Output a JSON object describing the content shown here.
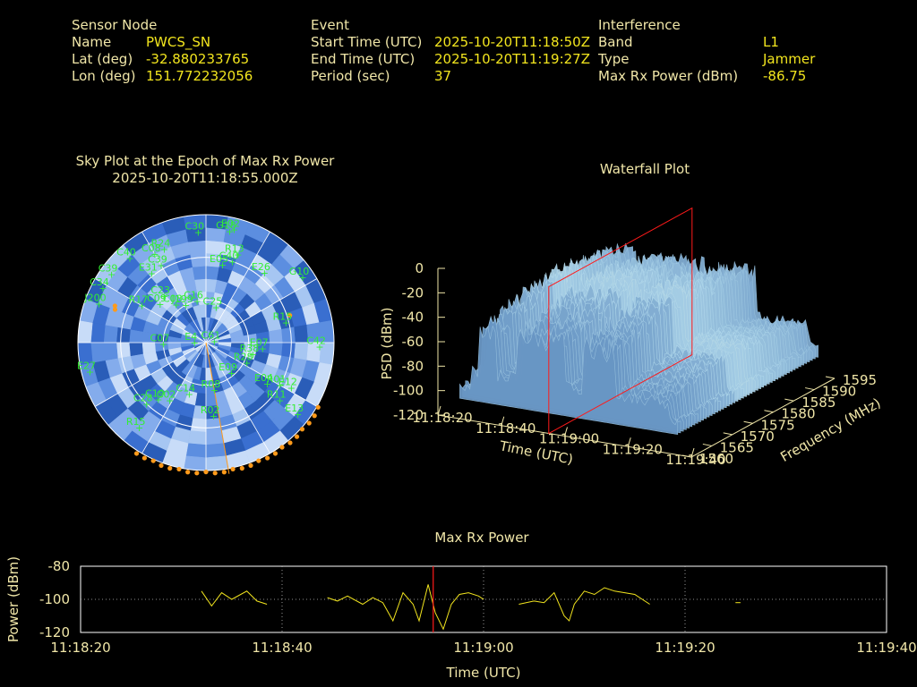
{
  "info": {
    "sensor": {
      "heading": "Sensor Node",
      "rows": [
        {
          "label": "Name",
          "value": "PWCS_SN"
        },
        {
          "label": "Lat (deg)",
          "value": "-32.880233765"
        },
        {
          "label": "Lon (deg)",
          "value": "151.772232056"
        }
      ]
    },
    "event": {
      "heading": "Event",
      "rows": [
        {
          "label": "Start Time (UTC)",
          "value": "2025-10-20T11:18:50Z"
        },
        {
          "label": "End Time (UTC)",
          "value": "2025-10-20T11:19:27Z"
        },
        {
          "label": "Period (sec)",
          "value": "37"
        }
      ]
    },
    "interference": {
      "heading": "Interference",
      "rows": [
        {
          "label": "Band",
          "value": "L1"
        },
        {
          "label": "Type",
          "value": "Jammer"
        },
        {
          "label": "Max Rx Power (dBm)",
          "value": "-86.75"
        }
      ]
    }
  },
  "colors": {
    "label": "#f0e6a8",
    "value": "#f2e51e",
    "satellite": "#33ee33",
    "orange": "#ff9a1a",
    "marker": "#ff1a1a",
    "sky_tiles": [
      "#2a5db8",
      "#3a6fd0",
      "#5c8ee0",
      "#84acec",
      "#a6c6f2",
      "#c8dcf8"
    ]
  },
  "chart_data": [
    {
      "type": "scatter",
      "title": "Sky Plot at the Epoch of Max Rx Power",
      "subtitle": "2025-10-20T11:18:55.000Z",
      "coordinates": "polar (azimuth deg clockwise from north, elevation deg)",
      "elevation_rings": [
        0,
        30,
        60,
        90
      ],
      "satellites": [
        {
          "id": "C30",
          "az": 356,
          "el": 12
        },
        {
          "id": "G18",
          "az": 12,
          "el": 10
        },
        {
          "id": "E02",
          "az": 14,
          "el": 8
        },
        {
          "id": "R13",
          "az": 20,
          "el": 24
        },
        {
          "id": "E05",
          "az": 12,
          "el": 34
        },
        {
          "id": "C40",
          "az": 18,
          "el": 30
        },
        {
          "id": "R24",
          "az": 336,
          "el": 18
        },
        {
          "id": "C08",
          "az": 330,
          "el": 18
        },
        {
          "id": "C39",
          "az": 330,
          "el": 27
        },
        {
          "id": "C40",
          "az": 318,
          "el": 10
        },
        {
          "id": "E31",
          "az": 322,
          "el": 28
        },
        {
          "id": "C39",
          "az": 306,
          "el": 8
        },
        {
          "id": "C34",
          "az": 298,
          "el": 8
        },
        {
          "id": "C23",
          "az": 318,
          "el": 46
        },
        {
          "id": "J199",
          "az": 332,
          "el": 60
        },
        {
          "id": "C09",
          "az": 310,
          "el": 48
        },
        {
          "id": "C08",
          "az": 322,
          "el": 56
        },
        {
          "id": "C16",
          "az": 348,
          "el": 60
        },
        {
          "id": "C25",
          "az": 16,
          "el": 64
        },
        {
          "id": "E26",
          "az": 40,
          "el": 26
        },
        {
          "id": "G10",
          "az": 56,
          "el": 8
        },
        {
          "id": "R17",
          "az": 300,
          "el": 38
        },
        {
          "id": "J200",
          "az": 290,
          "el": 10
        },
        {
          "id": "R15",
          "az": 76,
          "el": 32
        },
        {
          "id": "C61",
          "az": 80,
          "el": 84
        },
        {
          "id": "R38",
          "az": 104,
          "el": 56
        },
        {
          "id": "E07",
          "az": 96,
          "el": 50
        },
        {
          "id": "C42",
          "az": 92,
          "el": 10
        },
        {
          "id": "C07",
          "az": 268,
          "el": 60
        },
        {
          "id": "E4",
          "az": 270,
          "el": 82
        },
        {
          "id": "E27",
          "az": 256,
          "el": 6
        },
        {
          "id": "C28",
          "az": 224,
          "el": 30
        },
        {
          "id": "C19",
          "az": 220,
          "el": 38
        },
        {
          "id": "C02",
          "az": 212,
          "el": 42
        },
        {
          "id": "C14",
          "az": 198,
          "el": 52
        },
        {
          "id": "R08",
          "az": 170,
          "el": 56
        },
        {
          "id": "E09",
          "az": 140,
          "el": 62
        },
        {
          "id": "R28",
          "az": 116,
          "el": 58
        },
        {
          "id": "E04",
          "az": 124,
          "el": 38
        },
        {
          "id": "R01",
          "az": 120,
          "el": 30
        },
        {
          "id": "E12",
          "az": 118,
          "el": 22
        },
        {
          "id": "R11",
          "az": 128,
          "el": 24
        },
        {
          "id": "E13",
          "az": 128,
          "el": 8
        },
        {
          "id": "R02",
          "az": 174,
          "el": 38
        },
        {
          "id": "R15",
          "az": 218,
          "el": 14
        }
      ],
      "interference_direction_deg": 170,
      "orange_markers_note": "horizon arc between azimuth 120 and 210 plus two points near azimuth 70 and 290"
    },
    {
      "type": "surface",
      "title": "Waterfall Plot",
      "xlabel": "Time (UTC)",
      "ylabel": "Frequency (MHz)",
      "zlabel": "PSD (dBm)",
      "x_ticks": [
        "11:18:20",
        "11:18:40",
        "11:19:00",
        "11:19:20",
        "11:19:40"
      ],
      "y_ticks": [
        "1560",
        "1565",
        "1570",
        "1575",
        "1580",
        "1585",
        "1590",
        "1595"
      ],
      "z_ticks": [
        "0",
        "-20",
        "-40",
        "-60",
        "-80",
        "-100",
        "-120"
      ],
      "zlim": [
        -120,
        0
      ],
      "cursor_time": "11:18:55",
      "activity_segments": [
        {
          "start": "11:18:32",
          "end": "11:18:38"
        },
        {
          "start": "11:18:44",
          "end": "11:18:59"
        },
        {
          "start": "11:19:05",
          "end": "11:19:15"
        }
      ]
    },
    {
      "type": "line",
      "title": "Max Rx Power",
      "xlabel": "Time (UTC)",
      "ylabel": "Power (dBm)",
      "x_ticks": [
        "11:18:20",
        "11:18:40",
        "11:19:00",
        "11:19:20",
        "11:19:40"
      ],
      "y_ticks": [
        "-80",
        "-100",
        "-120"
      ],
      "ylim": [
        -120,
        -80
      ],
      "x_range_sec": [
        0,
        80
      ],
      "marker_time_sec": 35,
      "series": [
        {
          "segments": [
            [
              [
                12.0,
                -95
              ],
              [
                13.0,
                -104
              ],
              [
                14.0,
                -96
              ],
              [
                15.0,
                -100
              ],
              [
                16.5,
                -95
              ],
              [
                17.5,
                -101
              ],
              [
                18.5,
                -103
              ]
            ],
            [
              [
                24.5,
                -99
              ],
              [
                25.5,
                -101
              ],
              [
                26.5,
                -98
              ],
              [
                28.0,
                -103
              ],
              [
                29.0,
                -99
              ],
              [
                30.0,
                -102
              ],
              [
                31.0,
                -113
              ],
              [
                32.0,
                -96
              ],
              [
                33.0,
                -103
              ],
              [
                33.6,
                -113
              ],
              [
                34.5,
                -91
              ],
              [
                35.2,
                -108
              ],
              [
                36.0,
                -118
              ],
              [
                36.8,
                -103
              ],
              [
                37.6,
                -97
              ],
              [
                38.5,
                -96
              ],
              [
                39.5,
                -98
              ],
              [
                40.0,
                -100
              ]
            ],
            [
              [
                43.5,
                -103
              ],
              [
                45.0,
                -101
              ],
              [
                46.0,
                -102
              ],
              [
                47.0,
                -96
              ],
              [
                48.0,
                -110
              ],
              [
                48.5,
                -113
              ],
              [
                49.0,
                -103
              ],
              [
                50.0,
                -95
              ],
              [
                51.0,
                -97
              ],
              [
                52.0,
                -93
              ],
              [
                53.0,
                -95
              ],
              [
                55.0,
                -97
              ],
              [
                56.5,
                -103
              ]
            ],
            [
              [
                65.0,
                -102
              ],
              [
                65.5,
                -102
              ]
            ]
          ]
        }
      ]
    }
  ]
}
